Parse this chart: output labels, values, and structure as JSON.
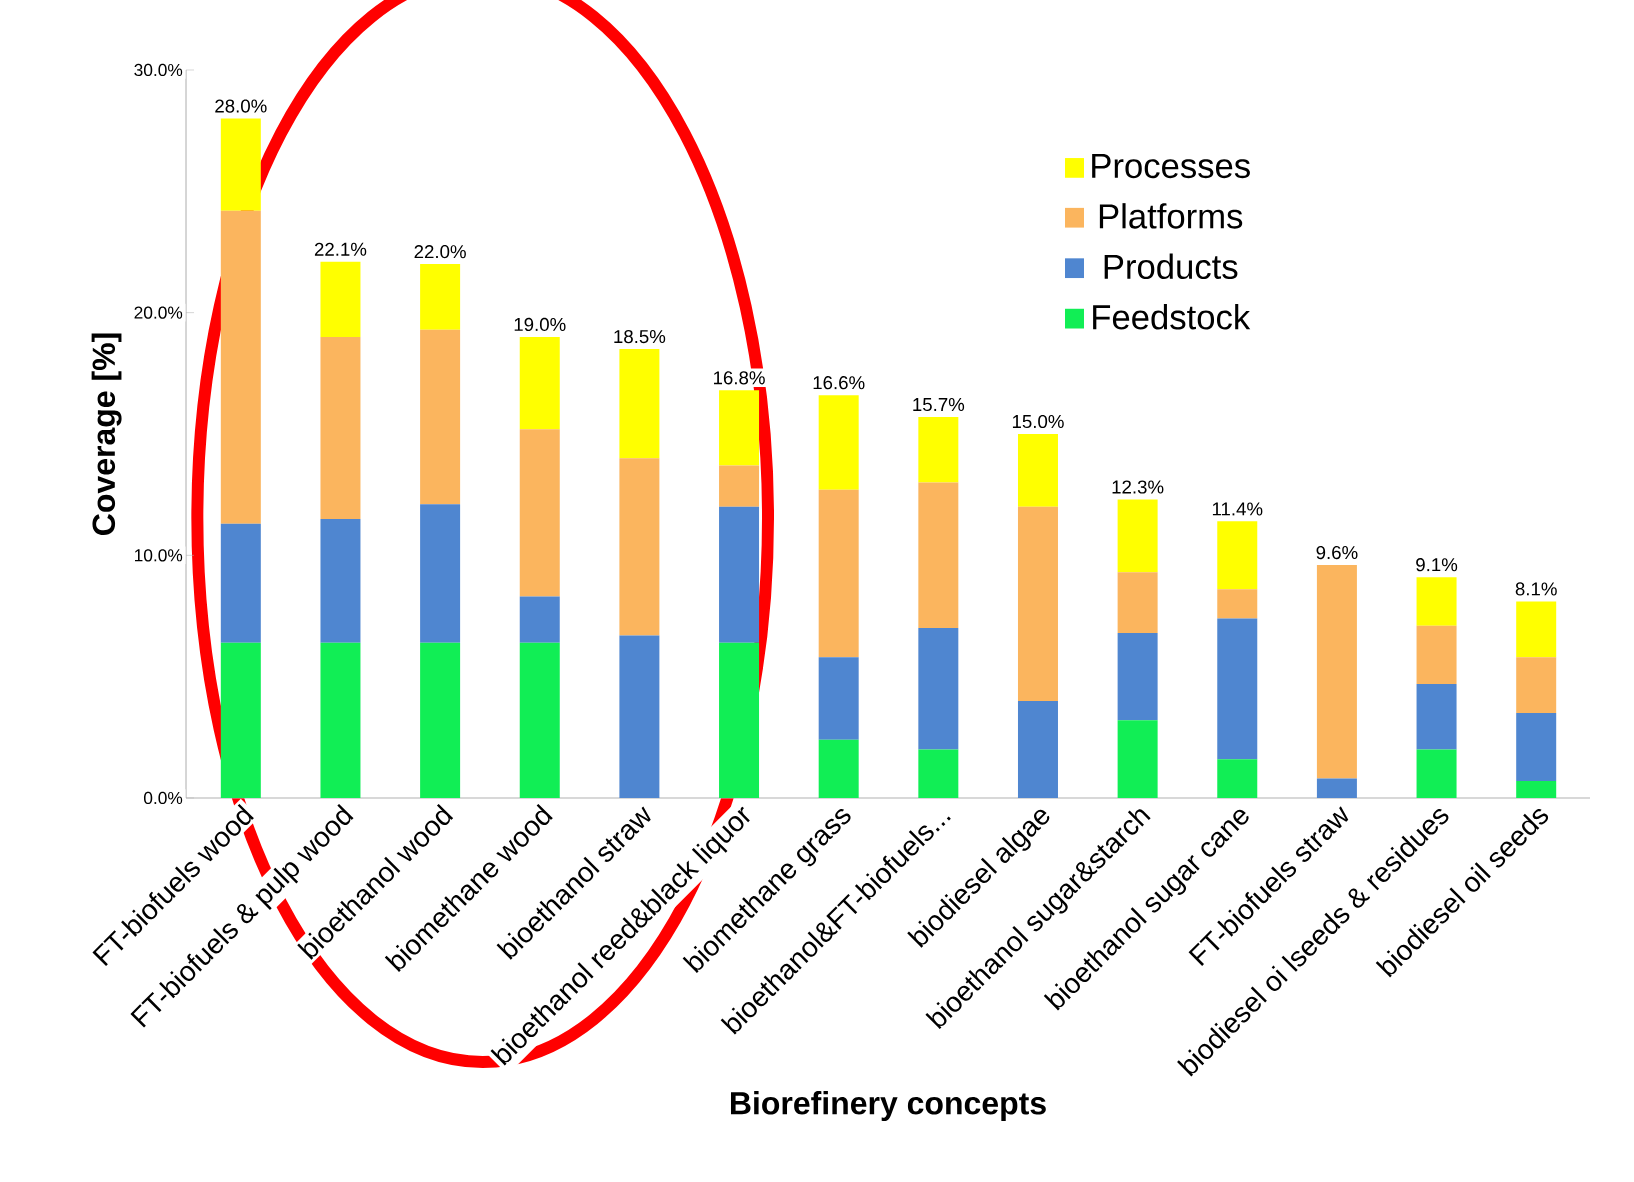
{
  "chart_data": {
    "type": "bar",
    "stacked": true,
    "xlabel": "Biorefinery concepts",
    "ylabel": "Coverage [%]",
    "categories": [
      "FT-biofuels wood",
      "FT-biofuels & pulp wood",
      "bioethanol wood",
      "biomethane wood",
      "bioethanol straw",
      "bioethanol reed&black liquor",
      "biomethane grass",
      "bioethanol&FT-biofuels...",
      "biodiesel algae",
      "bioethanol sugar&starch",
      "bioethanol sugar cane",
      "FT-biofuels straw",
      "biodiesel oi lseeds & residues",
      "biodiesel oil seeds"
    ],
    "series": [
      {
        "name": "Feedstock",
        "color": "#11ee55",
        "values": [
          6.4,
          6.4,
          6.4,
          6.4,
          0,
          6.4,
          2.4,
          2.0,
          0,
          3.2,
          1.6,
          0,
          2.0,
          0.7
        ]
      },
      {
        "name": "Products",
        "color": "#4f86d0",
        "values": [
          4.9,
          5.1,
          5.7,
          1.9,
          6.7,
          5.6,
          3.4,
          5.0,
          4.0,
          3.6,
          5.8,
          0.8,
          2.7,
          2.8
        ]
      },
      {
        "name": "Platforms",
        "color": "#fbb55e",
        "values": [
          12.9,
          7.5,
          7.2,
          6.9,
          7.3,
          1.7,
          6.9,
          6.0,
          8.0,
          2.5,
          1.2,
          8.8,
          2.4,
          2.3
        ]
      },
      {
        "name": "Processes",
        "color": "#ffff00",
        "values": [
          3.8,
          3.1,
          2.7,
          3.8,
          4.5,
          3.1,
          3.9,
          2.7,
          3.0,
          3.0,
          2.8,
          0,
          2.0,
          2.3
        ]
      }
    ],
    "totals": [
      "28.0%",
      "22.1%",
      "22.0%",
      "19.0%",
      "18.5%",
      "16.8%",
      "16.6%",
      "15.7%",
      "15.0%",
      "12.3%",
      "11.4%",
      "9.6%",
      "9.1%",
      "8.1%"
    ],
    "ylim": [
      0,
      30
    ],
    "yticks": [
      {
        "value": 0,
        "label": "0.0%"
      },
      {
        "value": 10,
        "label": "10.0%"
      },
      {
        "value": 20,
        "label": "20.0%"
      },
      {
        "value": 30,
        "label": "30.0%"
      }
    ],
    "grid": false,
    "legend": "top right"
  }
}
